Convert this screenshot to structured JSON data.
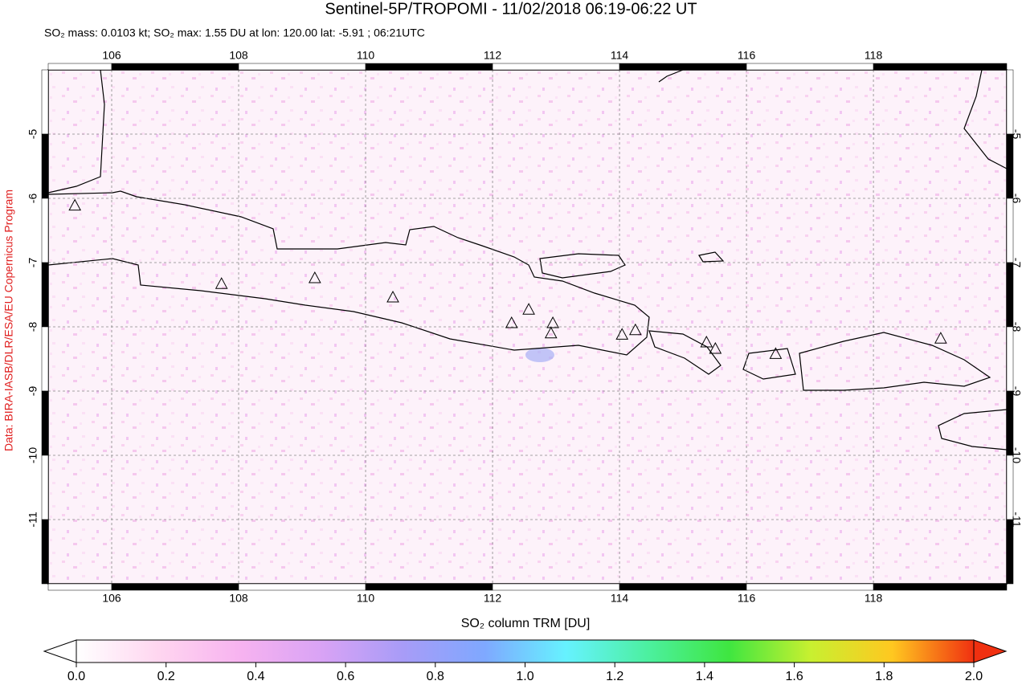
{
  "chart_data": {
    "type": "map",
    "title": "Sentinel-5P/TROPOMI - 11/02/2018 06:19-06:22 UT",
    "subtitle": "SO₂ mass: 0.0103 kt; SO₂ max: 1.55 DU at lon: 120.00 lat: -5.91 ; 06:21UTC",
    "source": "Data: BIRA-IASB/DLR/ESA/EU Copernicus Program",
    "xlim": [
      105,
      120.1
    ],
    "ylim": [
      -12,
      -4
    ],
    "xticks": [
      106,
      108,
      110,
      112,
      114,
      116,
      118
    ],
    "yticks": [
      -5,
      -6,
      -7,
      -8,
      -9,
      -10,
      -11
    ],
    "grid": true,
    "volcanoes": {
      "lon": [
        105.42,
        107.73,
        109.2,
        110.43,
        112.3,
        112.57,
        112.95,
        112.92,
        114.04,
        114.25,
        115.37,
        115.51,
        116.46,
        119.06
      ],
      "lat": [
        -6.12,
        -7.34,
        -7.25,
        -7.55,
        -7.95,
        -7.74,
        -7.95,
        -8.11,
        -8.13,
        -8.06,
        -8.25,
        -8.35,
        -8.43,
        -8.19
      ]
    },
    "colorbar": {
      "label": "SO₂ column TRM [DU]",
      "lim": [
        0,
        2
      ],
      "ticks": [
        {
          "value": 0,
          "label": "0.0"
        },
        {
          "value": 0.2,
          "label": "0.2"
        },
        {
          "value": 0.4,
          "label": "0.4"
        },
        {
          "value": 0.6,
          "label": "0.6"
        },
        {
          "value": 0.8,
          "label": "0.8"
        },
        {
          "value": 1,
          "label": "1.0"
        },
        {
          "value": 1.2,
          "label": "1.2"
        },
        {
          "value": 1.4,
          "label": "1.4"
        },
        {
          "value": 1.6,
          "label": "1.6"
        },
        {
          "value": 1.8,
          "label": "1.8"
        },
        {
          "value": 2,
          "label": "2.0"
        }
      ],
      "colors": [
        "#ffffff",
        "#ffd6f0",
        "#f7b3f0",
        "#d9a3f5",
        "#a89cf7",
        "#7fa8ff",
        "#66f2ff",
        "#4cf0a0",
        "#3fe640",
        "#c8f030",
        "#ffc820",
        "#f03010"
      ]
    }
  }
}
